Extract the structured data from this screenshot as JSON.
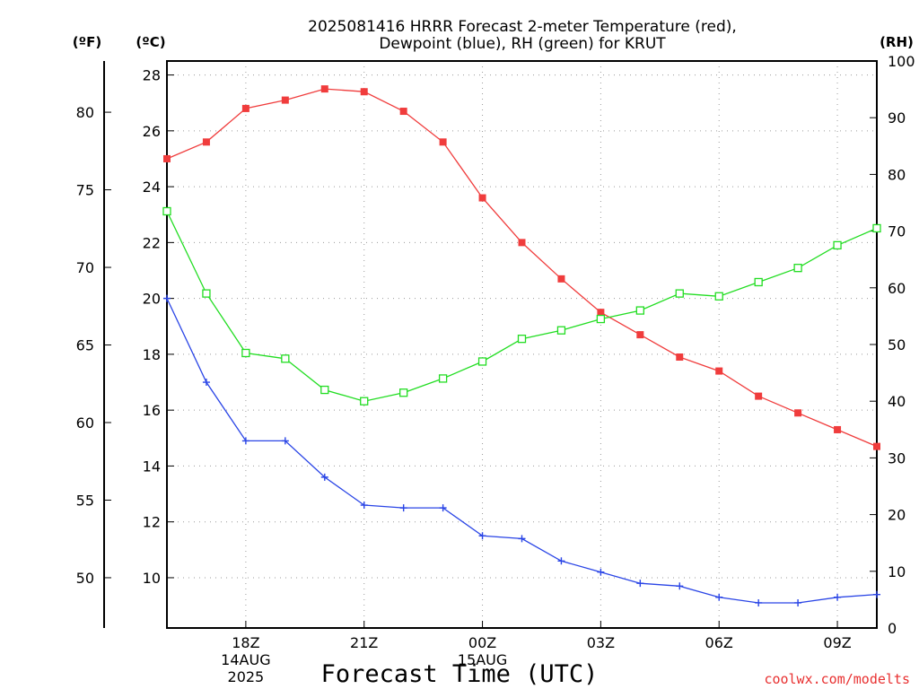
{
  "chart_data": {
    "type": "line",
    "title": [
      "2025081416 HRRR Forecast 2-meter Temperature (red),",
      "Dewpoint (blue), RH (green) for KRUT"
    ],
    "xlabel": "Forecast Time (UTC)",
    "credit": "coolwx.com/modelts",
    "units": {
      "fahrenheit": "(ºF)",
      "celsius": "(ºC)",
      "rh": "(RH)"
    },
    "x": [
      "16Z",
      "17Z",
      "18Z",
      "19Z",
      "20Z",
      "21Z",
      "22Z",
      "23Z",
      "00Z",
      "01Z",
      "02Z",
      "03Z",
      "04Z",
      "05Z",
      "06Z",
      "07Z",
      "08Z",
      "09Z",
      "10Z"
    ],
    "x_tick_labels": [
      {
        "index": 2,
        "label": "18Z",
        "sub": [
          "14AUG",
          "2025"
        ]
      },
      {
        "index": 5,
        "label": "21Z",
        "sub": []
      },
      {
        "index": 8,
        "label": "00Z",
        "sub": [
          "15AUG"
        ]
      },
      {
        "index": 11,
        "label": "03Z",
        "sub": []
      },
      {
        "index": 14,
        "label": "06Z",
        "sub": []
      },
      {
        "index": 17,
        "label": "09Z",
        "sub": []
      }
    ],
    "ylim_celsius": [
      8.2,
      28.5
    ],
    "yticks_celsius": [
      10,
      12,
      14,
      16,
      18,
      20,
      22,
      24,
      26,
      28
    ],
    "yticks_fahrenheit": [
      50,
      55,
      60,
      65,
      70,
      75,
      80
    ],
    "ylim_rh": [
      0,
      100
    ],
    "yticks_rh": [
      0,
      10,
      20,
      30,
      40,
      50,
      60,
      70,
      80,
      90,
      100
    ],
    "grid": true,
    "series": [
      {
        "axis": "celsius",
        "color": "#f03c3c",
        "marker": "filled-square",
        "values": [
          25.0,
          25.6,
          26.8,
          27.1,
          27.5,
          27.4,
          26.7,
          25.6,
          23.6,
          22.0,
          20.7,
          19.5,
          18.7,
          17.9,
          17.4,
          16.5,
          15.9,
          15.3,
          14.7
        ]
      },
      {
        "axis": "celsius",
        "color": "#2a45e6",
        "marker": "plus",
        "values": [
          20.0,
          17.0,
          14.9,
          14.9,
          13.6,
          12.6,
          12.5,
          12.5,
          11.5,
          11.4,
          10.6,
          10.2,
          9.8,
          9.7,
          9.3,
          9.1,
          9.1,
          9.3,
          9.4
        ]
      },
      {
        "axis": "rh",
        "color": "#22dd22",
        "marker": "open-square",
        "values": [
          73.5,
          59.0,
          48.5,
          47.5,
          42.0,
          40.0,
          41.5,
          44.0,
          47.0,
          51.0,
          52.5,
          54.5,
          56.0,
          59.0,
          58.5,
          61.0,
          63.5,
          67.5,
          70.5
        ]
      }
    ]
  }
}
